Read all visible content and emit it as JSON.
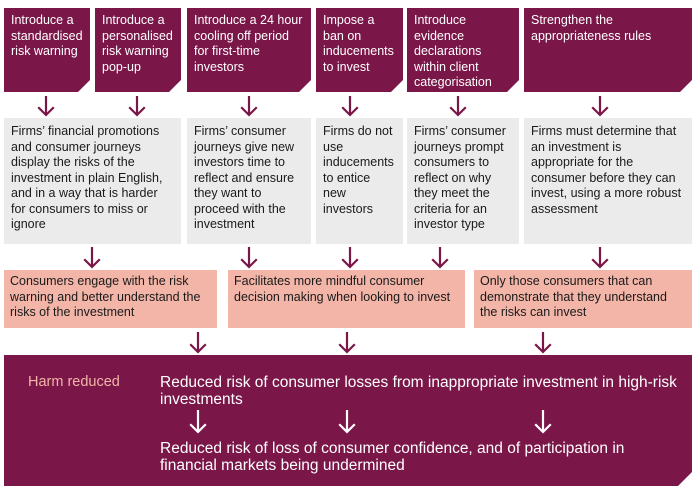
{
  "interventions": [
    "Introduce a standardised risk warning",
    "Introduce a personalised risk warning pop-up",
    "Introduce a 24 hour cooling off period for first-time investors",
    "Impose a ban on inducements to invest",
    "Introduce evidence declarations within client categorisation",
    "Strengthen the appropriateness rules"
  ],
  "effects": [
    "Firms’ financial promotions and consumer journeys display the risks of the investment in plain English, and in a way that is harder for consumers to miss or ignore",
    "Firms’ consumer journeys give new investors time to reflect and ensure they want to proceed with the investment",
    "Firms do not use inducements to entice new investors",
    "Firms’ consumer journeys prompt consumers to reflect on why they meet the criteria for an investor type",
    "Firms must determine that an investment is appropriate for the consumer before they can invest, using a more robust assessment"
  ],
  "outcomes": [
    "Consumers engage with the risk warning and better understand the risks of the investment",
    "Facilitates more mindful consumer decision making when looking to invest",
    "Only those consumers that can demonstrate that they understand the risks can invest"
  ],
  "harm": {
    "label": "Harm reduced",
    "items": [
      "Reduced risk of consumer losses from inappropriate investment in high-risk investments",
      "Reduced risk of loss of consumer confidence, and of participation in financial markets being undermined"
    ]
  },
  "colors": {
    "primary": "#7a1648",
    "grey": "#ebebeb",
    "salmon": "#f2b5a8"
  }
}
